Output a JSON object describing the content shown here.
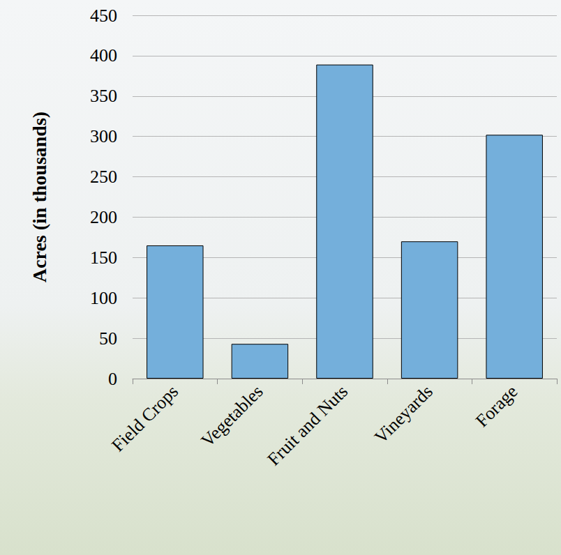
{
  "chart_data": {
    "type": "bar",
    "y_label": "Acres (in thousands)",
    "categories": [
      "Field Crops",
      "Vegetables",
      "Fruit and Nuts",
      "Vineyards",
      "Forage"
    ],
    "values": [
      165,
      43,
      389,
      170,
      302
    ],
    "color": "#74afdb",
    "ylim": [
      0,
      450
    ],
    "yticks": [
      0,
      50,
      100,
      150,
      200,
      250,
      300,
      350,
      400,
      450
    ],
    "grid": true
  }
}
